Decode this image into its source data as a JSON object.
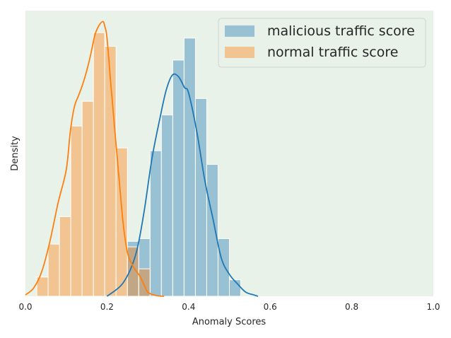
{
  "chart_data": {
    "type": "histogram",
    "xlabel": "Anomaly Scores",
    "ylabel": "Density",
    "xlim": [
      0.0,
      1.0
    ],
    "ylim": [
      0,
      10.4
    ],
    "xticks": [
      "0.0",
      "0.2",
      "0.4",
      "0.6",
      "0.8",
      "1.0"
    ],
    "yticks_shown": false,
    "grid": false,
    "legend_position": "top-right",
    "background_color": "#e9f2e9",
    "bin_width": 0.0278,
    "series": [
      {
        "name": "malicious traffic score",
        "color": "#1f77b4",
        "bar_color": "#92bdd6",
        "bins": [
          {
            "x0": 0.25,
            "x1": 0.2778,
            "density": 2.0
          },
          {
            "x0": 0.2778,
            "x1": 0.3056,
            "density": 2.1
          },
          {
            "x0": 0.3056,
            "x1": 0.3333,
            "density": 5.3
          },
          {
            "x0": 0.3333,
            "x1": 0.3611,
            "density": 6.6
          },
          {
            "x0": 0.3611,
            "x1": 0.3889,
            "density": 8.6
          },
          {
            "x0": 0.3889,
            "x1": 0.4167,
            "density": 9.4
          },
          {
            "x0": 0.4167,
            "x1": 0.4444,
            "density": 7.2
          },
          {
            "x0": 0.4444,
            "x1": 0.4722,
            "density": 4.8
          },
          {
            "x0": 0.4722,
            "x1": 0.5,
            "density": 2.1
          },
          {
            "x0": 0.5,
            "x1": 0.5278,
            "density": 0.6
          }
        ],
        "kde": [
          [
            0.2,
            0.0
          ],
          [
            0.24,
            0.5
          ],
          [
            0.27,
            1.5
          ],
          [
            0.29,
            3.0
          ],
          [
            0.31,
            5.0
          ],
          [
            0.33,
            6.5
          ],
          [
            0.345,
            7.5
          ],
          [
            0.36,
            8.05
          ],
          [
            0.375,
            8.0
          ],
          [
            0.39,
            7.6
          ],
          [
            0.4,
            7.4
          ],
          [
            0.42,
            6.0
          ],
          [
            0.44,
            4.2
          ],
          [
            0.46,
            2.8
          ],
          [
            0.48,
            1.4
          ],
          [
            0.5,
            0.8
          ],
          [
            0.52,
            0.45
          ],
          [
            0.54,
            0.15
          ],
          [
            0.56,
            0.05
          ],
          [
            0.57,
            0.0
          ]
        ]
      },
      {
        "name": "normal traffic score",
        "color": "#ff7f0e",
        "bar_color": "#f6c594",
        "bins": [
          {
            "x0": 0.0278,
            "x1": 0.0556,
            "density": 0.7
          },
          {
            "x0": 0.0556,
            "x1": 0.0833,
            "density": 1.9
          },
          {
            "x0": 0.0833,
            "x1": 0.1111,
            "density": 2.9
          },
          {
            "x0": 0.1111,
            "x1": 0.1389,
            "density": 6.2
          },
          {
            "x0": 0.1389,
            "x1": 0.1667,
            "density": 7.1
          },
          {
            "x0": 0.1667,
            "x1": 0.1944,
            "density": 9.6
          },
          {
            "x0": 0.1944,
            "x1": 0.2222,
            "density": 9.1
          },
          {
            "x0": 0.2222,
            "x1": 0.25,
            "density": 5.4
          },
          {
            "x0": 0.25,
            "x1": 0.2778,
            "density": 1.8
          },
          {
            "x0": 0.2778,
            "x1": 0.3056,
            "density": 1.0
          }
        ],
        "kde": [
          [
            0.0,
            0.05
          ],
          [
            0.02,
            0.3
          ],
          [
            0.04,
            0.9
          ],
          [
            0.06,
            2.0
          ],
          [
            0.08,
            3.4
          ],
          [
            0.1,
            4.6
          ],
          [
            0.11,
            6.0
          ],
          [
            0.12,
            6.9
          ],
          [
            0.13,
            7.3
          ],
          [
            0.14,
            7.7
          ],
          [
            0.15,
            8.2
          ],
          [
            0.16,
            8.8
          ],
          [
            0.17,
            9.5
          ],
          [
            0.18,
            9.85
          ],
          [
            0.19,
            10.0
          ],
          [
            0.195,
            9.8
          ],
          [
            0.2,
            9.4
          ],
          [
            0.21,
            7.6
          ],
          [
            0.22,
            5.9
          ],
          [
            0.23,
            4.2
          ],
          [
            0.24,
            2.6
          ],
          [
            0.25,
            1.6
          ],
          [
            0.26,
            1.2
          ],
          [
            0.27,
            0.95
          ],
          [
            0.28,
            0.75
          ],
          [
            0.29,
            0.45
          ],
          [
            0.3,
            0.15
          ],
          [
            0.32,
            0.03
          ],
          [
            0.34,
            0.0
          ]
        ]
      }
    ]
  }
}
